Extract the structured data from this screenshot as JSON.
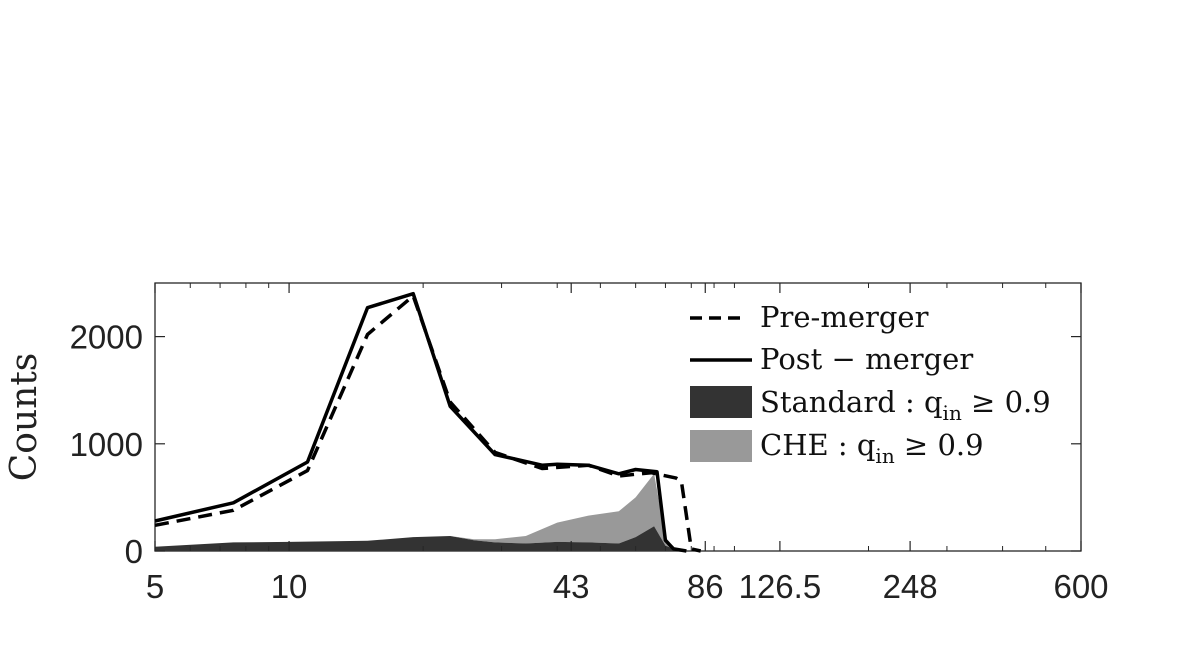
{
  "chart_data": {
    "type": "line",
    "xscale": "log",
    "xlim": [
      5,
      600
    ],
    "ylim": [
      0,
      2500
    ],
    "grid": false,
    "ylabel": "Counts",
    "xticks": [
      5,
      10,
      43,
      86,
      126.5,
      248,
      600
    ],
    "xtick_labels": [
      "5",
      "10",
      "43",
      "86",
      "126.5",
      "248",
      "600"
    ],
    "yticks": [
      0,
      1000,
      2000
    ],
    "ytick_labels": [
      "0",
      "1000",
      "2000"
    ],
    "legend_position": "top-right",
    "series": [
      {
        "name": "Pre-merger",
        "style": "dashed",
        "color": "#000000",
        "x": [
          5,
          7.5,
          11,
          15,
          19,
          23,
          29,
          37,
          47,
          55,
          65,
          74,
          76,
          80,
          84
        ],
        "values": [
          240,
          380,
          750,
          2020,
          2380,
          1390,
          920,
          770,
          800,
          700,
          730,
          680,
          650,
          20,
          0
        ]
      },
      {
        "name": "Post − merger",
        "style": "solid",
        "color": "#000000",
        "x": [
          5,
          7.5,
          11,
          15,
          19,
          23,
          29,
          37,
          40,
          47,
          55,
          60,
          67,
          70,
          73,
          78
        ],
        "values": [
          280,
          450,
          830,
          2270,
          2400,
          1350,
          900,
          800,
          810,
          800,
          720,
          760,
          740,
          100,
          20,
          0
        ]
      },
      {
        "name": "Standard : q_in ≥ 0.9",
        "style": "area",
        "color": "#333333",
        "x": [
          5,
          7.5,
          10,
          15,
          19,
          23,
          26,
          29,
          34,
          40,
          47,
          55,
          60,
          66,
          70,
          74,
          78
        ],
        "values": [
          40,
          80,
          85,
          95,
          130,
          140,
          100,
          80,
          70,
          85,
          80,
          70,
          130,
          230,
          50,
          10,
          0
        ]
      },
      {
        "name": "CHE : q_in ≥ 0.9",
        "style": "area",
        "color": "#999999",
        "x": [
          5,
          7.5,
          10,
          15,
          19,
          23,
          26,
          29,
          34,
          40,
          47,
          55,
          60,
          66,
          70,
          74,
          78
        ],
        "values": [
          0,
          0,
          0,
          0,
          0,
          0,
          10,
          30,
          70,
          180,
          250,
          300,
          370,
          490,
          80,
          0,
          0
        ]
      }
    ]
  },
  "legend": {
    "pre_label": "Pre-merger",
    "post_label": "Post − merger",
    "std_text": "Standard : q",
    "std_sub": "in",
    "std_tail": " ≥ 0.9",
    "che_text": "CHE : q",
    "che_sub": "in",
    "che_tail": " ≥ 0.9"
  }
}
